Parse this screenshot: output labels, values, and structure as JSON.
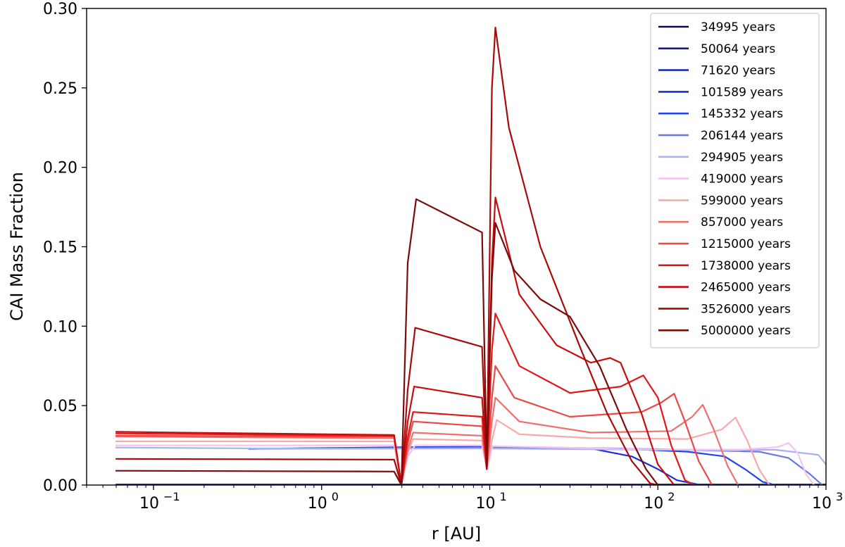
{
  "chart_data": {
    "type": "line",
    "xlabel": "r [AU]",
    "ylabel": "CAI Mass Fraction",
    "xscale": "log",
    "xlim": [
      0.04,
      1000
    ],
    "ylim": [
      0,
      0.3
    ],
    "grid": false,
    "legend_position": "top-right",
    "x_ticks": [
      {
        "value": 0.1,
        "base": "10",
        "exp": "−1"
      },
      {
        "value": 1,
        "base": "10",
        "exp": "0"
      },
      {
        "value": 10,
        "base": "10",
        "exp": "1"
      },
      {
        "value": 100,
        "base": "10",
        "exp": "2"
      },
      {
        "value": 1000,
        "base": "10",
        "exp": "3"
      }
    ],
    "y_ticks": [
      {
        "value": 0,
        "label": "0.00"
      },
      {
        "value": 0.05,
        "label": "0.05"
      },
      {
        "value": 0.1,
        "label": "0.10"
      },
      {
        "value": 0.15,
        "label": "0.15"
      },
      {
        "value": 0.2,
        "label": "0.20"
      },
      {
        "value": 0.25,
        "label": "0.25"
      },
      {
        "value": 0.3,
        "label": "0.30"
      }
    ],
    "series": [
      {
        "name": "34995 years",
        "color": "#0b0b4a",
        "points": [
          [
            0.06,
            0.0003
          ],
          [
            10,
            0.0003
          ],
          [
            1000,
            0.0003
          ]
        ]
      },
      {
        "name": "50064 years",
        "color": "#101a86",
        "points": [
          [
            0.06,
            0.0003
          ],
          [
            10,
            0.0003
          ],
          [
            1000,
            0.0003
          ]
        ]
      },
      {
        "name": "71620 years",
        "color": "#1a2cc0",
        "points": [
          [
            0.06,
            0.0003
          ],
          [
            10,
            0.0003
          ],
          [
            1000,
            0.0003
          ]
        ]
      },
      {
        "name": "101589 years",
        "color": "#1830d8",
        "points": [
          [
            0.37,
            0.0228
          ],
          [
            3,
            0.0238
          ],
          [
            10,
            0.0242
          ],
          [
            40,
            0.023
          ],
          [
            70,
            0.018
          ],
          [
            100,
            0.01
          ],
          [
            130,
            0.003
          ],
          [
            180,
            0.0
          ]
        ]
      },
      {
        "name": "145332 years",
        "color": "#2244ee",
        "points": [
          [
            0.37,
            0.0228
          ],
          [
            3,
            0.0235
          ],
          [
            10,
            0.024
          ],
          [
            60,
            0.023
          ],
          [
            150,
            0.021
          ],
          [
            250,
            0.018
          ],
          [
            330,
            0.01
          ],
          [
            420,
            0.002
          ],
          [
            500,
            0.0
          ]
        ]
      },
      {
        "name": "206144 years",
        "color": "#6677ee",
        "points": [
          [
            0.37,
            0.0228
          ],
          [
            3,
            0.0232
          ],
          [
            10,
            0.0236
          ],
          [
            100,
            0.0226
          ],
          [
            400,
            0.021
          ],
          [
            600,
            0.017
          ],
          [
            800,
            0.007
          ],
          [
            950,
            0.0
          ]
        ]
      },
      {
        "name": "294905 years",
        "color": "#aab0f4",
        "points": [
          [
            0.06,
            0.0236
          ],
          [
            1,
            0.0228
          ],
          [
            10,
            0.023
          ],
          [
            100,
            0.0222
          ],
          [
            500,
            0.0222
          ],
          [
            900,
            0.019
          ],
          [
            1000,
            0.013
          ]
        ]
      },
      {
        "name": "419000 years",
        "color": "#f4c4f0",
        "points": [
          [
            0.06,
            0.025
          ],
          [
            2.7,
            0.025
          ],
          [
            2.98,
            0.0
          ],
          [
            3.25,
            0.018
          ],
          [
            3.6,
            0.025
          ],
          [
            9.0,
            0.025
          ],
          [
            9.6,
            0.01
          ],
          [
            10.4,
            0.0245
          ],
          [
            80,
            0.0225
          ],
          [
            300,
            0.022
          ],
          [
            520,
            0.024
          ],
          [
            600,
            0.0265
          ],
          [
            680,
            0.02
          ],
          [
            760,
            0.007
          ],
          [
            850,
            0.0
          ]
        ]
      },
      {
        "name": "599000 years",
        "color": "#f8a8a8",
        "points": [
          [
            0.06,
            0.0275
          ],
          [
            2.7,
            0.0275
          ],
          [
            2.98,
            0.0
          ],
          [
            3.25,
            0.02
          ],
          [
            3.5,
            0.029
          ],
          [
            9.0,
            0.028
          ],
          [
            9.6,
            0.01
          ],
          [
            10.3,
            0.028
          ],
          [
            11,
            0.041
          ],
          [
            15,
            0.032
          ],
          [
            40,
            0.0295
          ],
          [
            150,
            0.029
          ],
          [
            240,
            0.035
          ],
          [
            290,
            0.0425
          ],
          [
            340,
            0.028
          ],
          [
            400,
            0.01
          ],
          [
            460,
            0.0
          ]
        ]
      },
      {
        "name": "857000 years",
        "color": "#f07070",
        "points": [
          [
            0.06,
            0.0305
          ],
          [
            2.7,
            0.0295
          ],
          [
            2.98,
            0.0
          ],
          [
            3.25,
            0.022
          ],
          [
            3.5,
            0.033
          ],
          [
            9.0,
            0.031
          ],
          [
            9.6,
            0.01
          ],
          [
            10.3,
            0.04
          ],
          [
            10.8,
            0.055
          ],
          [
            15,
            0.04
          ],
          [
            40,
            0.033
          ],
          [
            120,
            0.034
          ],
          [
            160,
            0.043
          ],
          [
            185,
            0.0505
          ],
          [
            215,
            0.035
          ],
          [
            260,
            0.012
          ],
          [
            300,
            0.0
          ]
        ]
      },
      {
        "name": "1215000 years",
        "color": "#ec4848",
        "points": [
          [
            0.06,
            0.031
          ],
          [
            2.7,
            0.0305
          ],
          [
            2.98,
            0.0
          ],
          [
            3.25,
            0.026
          ],
          [
            3.5,
            0.04
          ],
          [
            9.0,
            0.037
          ],
          [
            9.6,
            0.01
          ],
          [
            10.3,
            0.055
          ],
          [
            10.8,
            0.075
          ],
          [
            14,
            0.055
          ],
          [
            30,
            0.043
          ],
          [
            80,
            0.046
          ],
          [
            105,
            0.052
          ],
          [
            125,
            0.0575
          ],
          [
            145,
            0.04
          ],
          [
            175,
            0.015
          ],
          [
            210,
            0.0
          ]
        ]
      },
      {
        "name": "1738000 years",
        "color": "#e01818",
        "points": [
          [
            0.06,
            0.0325
          ],
          [
            2.7,
            0.031
          ],
          [
            2.98,
            0.0
          ],
          [
            3.25,
            0.03
          ],
          [
            3.5,
            0.046
          ],
          [
            9.0,
            0.043
          ],
          [
            9.6,
            0.01
          ],
          [
            10.3,
            0.085
          ],
          [
            10.8,
            0.108
          ],
          [
            15,
            0.075
          ],
          [
            30,
            0.058
          ],
          [
            60,
            0.062
          ],
          [
            75,
            0.067
          ],
          [
            82,
            0.069
          ],
          [
            100,
            0.055
          ],
          [
            120,
            0.025
          ],
          [
            145,
            0.003
          ],
          [
            165,
            0.0
          ]
        ]
      },
      {
        "name": "2465000 years",
        "color": "#c80c0c",
        "points": [
          [
            0.06,
            0.0335
          ],
          [
            2.7,
            0.0315
          ],
          [
            2.98,
            0.0
          ],
          [
            3.25,
            0.04
          ],
          [
            3.55,
            0.062
          ],
          [
            9.0,
            0.055
          ],
          [
            9.6,
            0.01
          ],
          [
            10.3,
            0.14
          ],
          [
            10.8,
            0.181
          ],
          [
            15,
            0.12
          ],
          [
            25,
            0.088
          ],
          [
            40,
            0.077
          ],
          [
            52,
            0.08
          ],
          [
            60,
            0.077
          ],
          [
            80,
            0.045
          ],
          [
            100,
            0.013
          ],
          [
            125,
            0.0
          ]
        ]
      },
      {
        "name": "3526000 years",
        "color": "#a80a0a",
        "points": [
          [
            0.06,
            0.0165
          ],
          [
            2.7,
            0.016
          ],
          [
            2.98,
            0.0
          ],
          [
            3.25,
            0.06
          ],
          [
            3.6,
            0.099
          ],
          [
            9.0,
            0.087
          ],
          [
            9.6,
            0.01
          ],
          [
            10.3,
            0.25
          ],
          [
            10.8,
            0.288
          ],
          [
            13,
            0.225
          ],
          [
            20,
            0.15
          ],
          [
            35,
            0.085
          ],
          [
            50,
            0.045
          ],
          [
            70,
            0.015
          ],
          [
            90,
            0.001
          ],
          [
            100,
            0.0
          ]
        ]
      },
      {
        "name": "5000000 years",
        "color": "#7c0a0a",
        "points": [
          [
            0.06,
            0.009
          ],
          [
            2.7,
            0.0085
          ],
          [
            2.98,
            0.0
          ],
          [
            3.25,
            0.14
          ],
          [
            3.65,
            0.18
          ],
          [
            9.0,
            0.159
          ],
          [
            9.6,
            0.012
          ],
          [
            10.3,
            0.13
          ],
          [
            10.8,
            0.165
          ],
          [
            14,
            0.135
          ],
          [
            20,
            0.117
          ],
          [
            30,
            0.106
          ],
          [
            45,
            0.075
          ],
          [
            65,
            0.035
          ],
          [
            85,
            0.01
          ],
          [
            100,
            0.0
          ]
        ]
      }
    ]
  }
}
